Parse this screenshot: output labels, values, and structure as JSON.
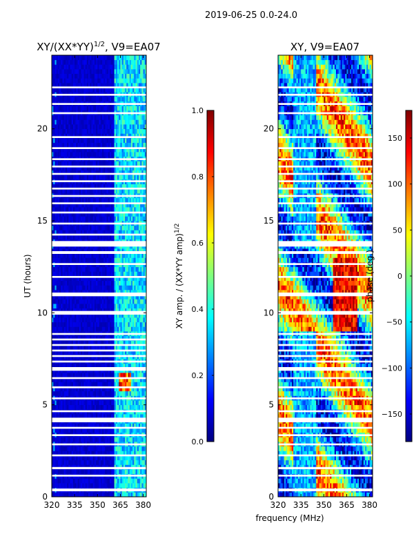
{
  "figure_title": "2019-06-25 0.0-24.0",
  "shared_xlabel": "frequency (MHz)",
  "colors": {
    "jet_stops": [
      "#00007f",
      "#0000ff",
      "#007fff",
      "#00ffff",
      "#7fff7f",
      "#ffff00",
      "#ff7f00",
      "#ff0000",
      "#7f0000"
    ],
    "background": "#ffffff",
    "axis": "#000000"
  },
  "chart_data": [
    {
      "type": "heatmap",
      "name": "amplitude",
      "title_main": "XY/(XX*YY)",
      "title_sup": "1/2",
      "title_suffix": ", V9=EA07",
      "xlabel": "",
      "ylabel": "UT (hours)",
      "xlim": [
        320,
        382
      ],
      "ylim": [
        0,
        24
      ],
      "xticks": [
        320,
        335,
        350,
        365,
        380
      ],
      "xtick_labels": [
        "320",
        "335",
        "350",
        "365",
        "380"
      ],
      "yticks": [
        0,
        5,
        10,
        15,
        20
      ],
      "ytick_labels": [
        "0",
        "5",
        "10",
        "15",
        "20"
      ],
      "colorbar": {
        "label_main": "XY amp. / (XX*YY amp)",
        "label_sup": "1/2",
        "range": [
          0.0,
          1.0
        ],
        "ticks": [
          0.0,
          0.2,
          0.4,
          0.6,
          0.8,
          1.0
        ],
        "tick_labels": [
          "0.0",
          "0.2",
          "0.4",
          "0.6",
          "0.8",
          "1.0"
        ]
      },
      "description_values": {
        "typical_low_band": 0.05,
        "typical_high_band": 0.35,
        "high_band_start_mhz": 361
      }
    },
    {
      "type": "heatmap",
      "name": "phase",
      "title_main": "XY, V9=EA07",
      "xlabel": "frequency (MHz)",
      "ylabel": "",
      "xlim": [
        320,
        382
      ],
      "ylim": [
        0,
        24
      ],
      "xticks": [
        320,
        335,
        350,
        365,
        380
      ],
      "xtick_labels": [
        "320",
        "335",
        "350",
        "365",
        "380"
      ],
      "yticks": [
        0,
        5,
        10,
        15,
        20
      ],
      "ytick_labels": [
        "0",
        "5",
        "10",
        "15",
        "20"
      ],
      "colorbar": {
        "label_main": "phase (deg.)",
        "range": [
          -180,
          180
        ],
        "ticks": [
          -150,
          -100,
          -50,
          0,
          50,
          100,
          150
        ],
        "tick_labels": [
          "−150",
          "−100",
          "−50",
          "0",
          "50",
          "100",
          "150"
        ]
      }
    }
  ],
  "gaps_hours": [
    [
      0.3,
      0.45
    ],
    [
      1.1,
      1.2
    ],
    [
      1.5,
      1.62
    ],
    [
      2.2,
      2.3
    ],
    [
      2.8,
      2.9
    ],
    [
      3.3,
      3.4
    ],
    [
      3.7,
      3.8
    ],
    [
      4.05,
      4.3
    ],
    [
      4.6,
      4.7
    ],
    [
      5.3,
      5.4
    ],
    [
      5.9,
      6.0
    ],
    [
      6.4,
      6.5
    ],
    [
      6.85,
      7.05
    ],
    [
      7.3,
      7.4
    ],
    [
      7.6,
      7.7
    ],
    [
      7.9,
      8.0
    ],
    [
      8.2,
      8.3
    ],
    [
      8.5,
      8.6
    ],
    [
      8.8,
      8.9
    ],
    [
      9.9,
      10.1
    ],
    [
      10.9,
      11.1
    ],
    [
      11.9,
      12.0
    ],
    [
      12.6,
      12.7
    ],
    [
      13.2,
      13.35
    ],
    [
      13.6,
      13.9
    ],
    [
      14.2,
      14.3
    ],
    [
      14.8,
      14.9
    ],
    [
      15.4,
      15.5
    ],
    [
      15.9,
      16.0
    ],
    [
      16.3,
      16.4
    ],
    [
      16.7,
      16.8
    ],
    [
      17.1,
      17.2
    ],
    [
      17.5,
      17.6
    ],
    [
      17.9,
      18.0
    ],
    [
      18.3,
      18.4
    ],
    [
      18.9,
      19.0
    ],
    [
      19.5,
      19.6
    ],
    [
      20.8,
      20.9
    ],
    [
      21.3,
      21.4
    ],
    [
      21.8,
      21.9
    ],
    [
      22.2,
      22.3
    ]
  ]
}
